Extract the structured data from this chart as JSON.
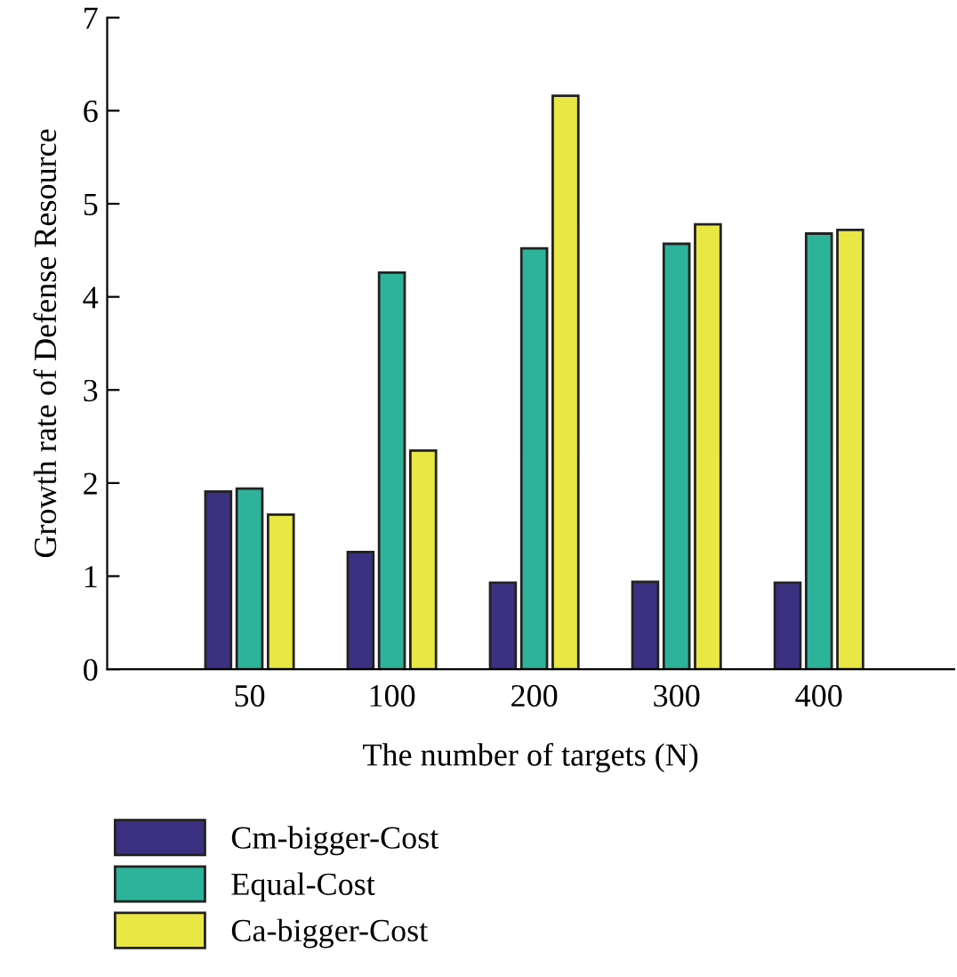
{
  "chart_data": {
    "type": "bar",
    "xlabel": "The number of targets (N)",
    "ylabel": "Growth rate of Defense Resource",
    "categories": [
      "50",
      "100",
      "200",
      "300",
      "400"
    ],
    "series": [
      {
        "name": "Cm-bigger-Cost",
        "color": "#3b3180",
        "values": [
          1.91,
          1.26,
          0.93,
          0.94,
          0.93
        ]
      },
      {
        "name": "Equal-Cost",
        "color": "#2db39a",
        "values": [
          1.94,
          4.26,
          4.52,
          4.57,
          4.68
        ]
      },
      {
        "name": "Ca-bigger-Cost",
        "color": "#e9e744",
        "values": [
          1.66,
          2.35,
          6.16,
          4.78,
          4.72
        ]
      }
    ],
    "ylim": [
      0,
      7
    ],
    "yticks": [
      0,
      1,
      2,
      3,
      4,
      5,
      6,
      7
    ],
    "grid": false,
    "legend": "bottom"
  }
}
